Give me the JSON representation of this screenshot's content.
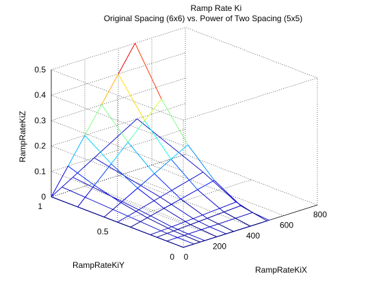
{
  "chart_data": {
    "type": "surface-mesh",
    "title": "Ramp Rate Ki",
    "subtitle": "Original Spacing (6x6) vs. Power of Two Spacing (5x5)",
    "xlabel": "RampRateKiX",
    "ylabel": "RampRateKiY",
    "zlabel": "RampRateKiZ",
    "xlim": [
      0,
      800
    ],
    "ylim": [
      0,
      1
    ],
    "zlim": [
      0,
      0.5
    ],
    "xticks": [
      0,
      200,
      400,
      600,
      800
    ],
    "yticks": [
      0,
      0.5,
      1
    ],
    "zticks": [
      0,
      0.1,
      0.2,
      0.3,
      0.4,
      0.5
    ],
    "xtick_labels": [
      "0",
      "200",
      "400",
      "600",
      "800"
    ],
    "ytick_labels": [
      "0",
      "0.5",
      "1"
    ],
    "ztick_labels": [
      "0",
      "0.1",
      "0.2",
      "0.3",
      "0.4",
      "0.5"
    ],
    "grid": true,
    "series": [
      {
        "name": "Original Spacing (6x6)",
        "style": "colored-mesh",
        "x": [
          0,
          100,
          200,
          300,
          400,
          500
        ],
        "y": [
          0,
          0.2,
          0.4,
          0.6,
          0.8,
          1.0
        ],
        "z": [
          [
            0,
            0,
            0,
            0,
            0,
            0
          ],
          [
            0,
            0.004,
            0.008,
            0.012,
            0.016,
            0.02
          ],
          [
            0,
            0.016,
            0.032,
            0.048,
            0.064,
            0.08
          ],
          [
            0,
            0.036,
            0.072,
            0.108,
            0.144,
            0.18
          ],
          [
            0,
            0.064,
            0.128,
            0.192,
            0.256,
            0.32
          ],
          [
            0,
            0.1,
            0.2,
            0.3,
            0.4,
            0.5
          ]
        ]
      },
      {
        "name": "Power of Two Spacing (5x5)",
        "style": "blue-mesh",
        "x": [
          0,
          64,
          128,
          256,
          512
        ],
        "y": [
          0,
          0.125,
          0.25,
          0.5,
          1.0
        ],
        "z": [
          [
            0,
            0,
            0,
            0,
            0
          ],
          [
            0,
            0.0005,
            0.0012,
            0.0025,
            0.0055
          ],
          [
            0,
            0.002,
            0.0045,
            0.01,
            0.022
          ],
          [
            0,
            0.01,
            0.022,
            0.045,
            0.09
          ],
          [
            0,
            0.025,
            0.05,
            0.1,
            0.2
          ]
        ]
      }
    ]
  }
}
